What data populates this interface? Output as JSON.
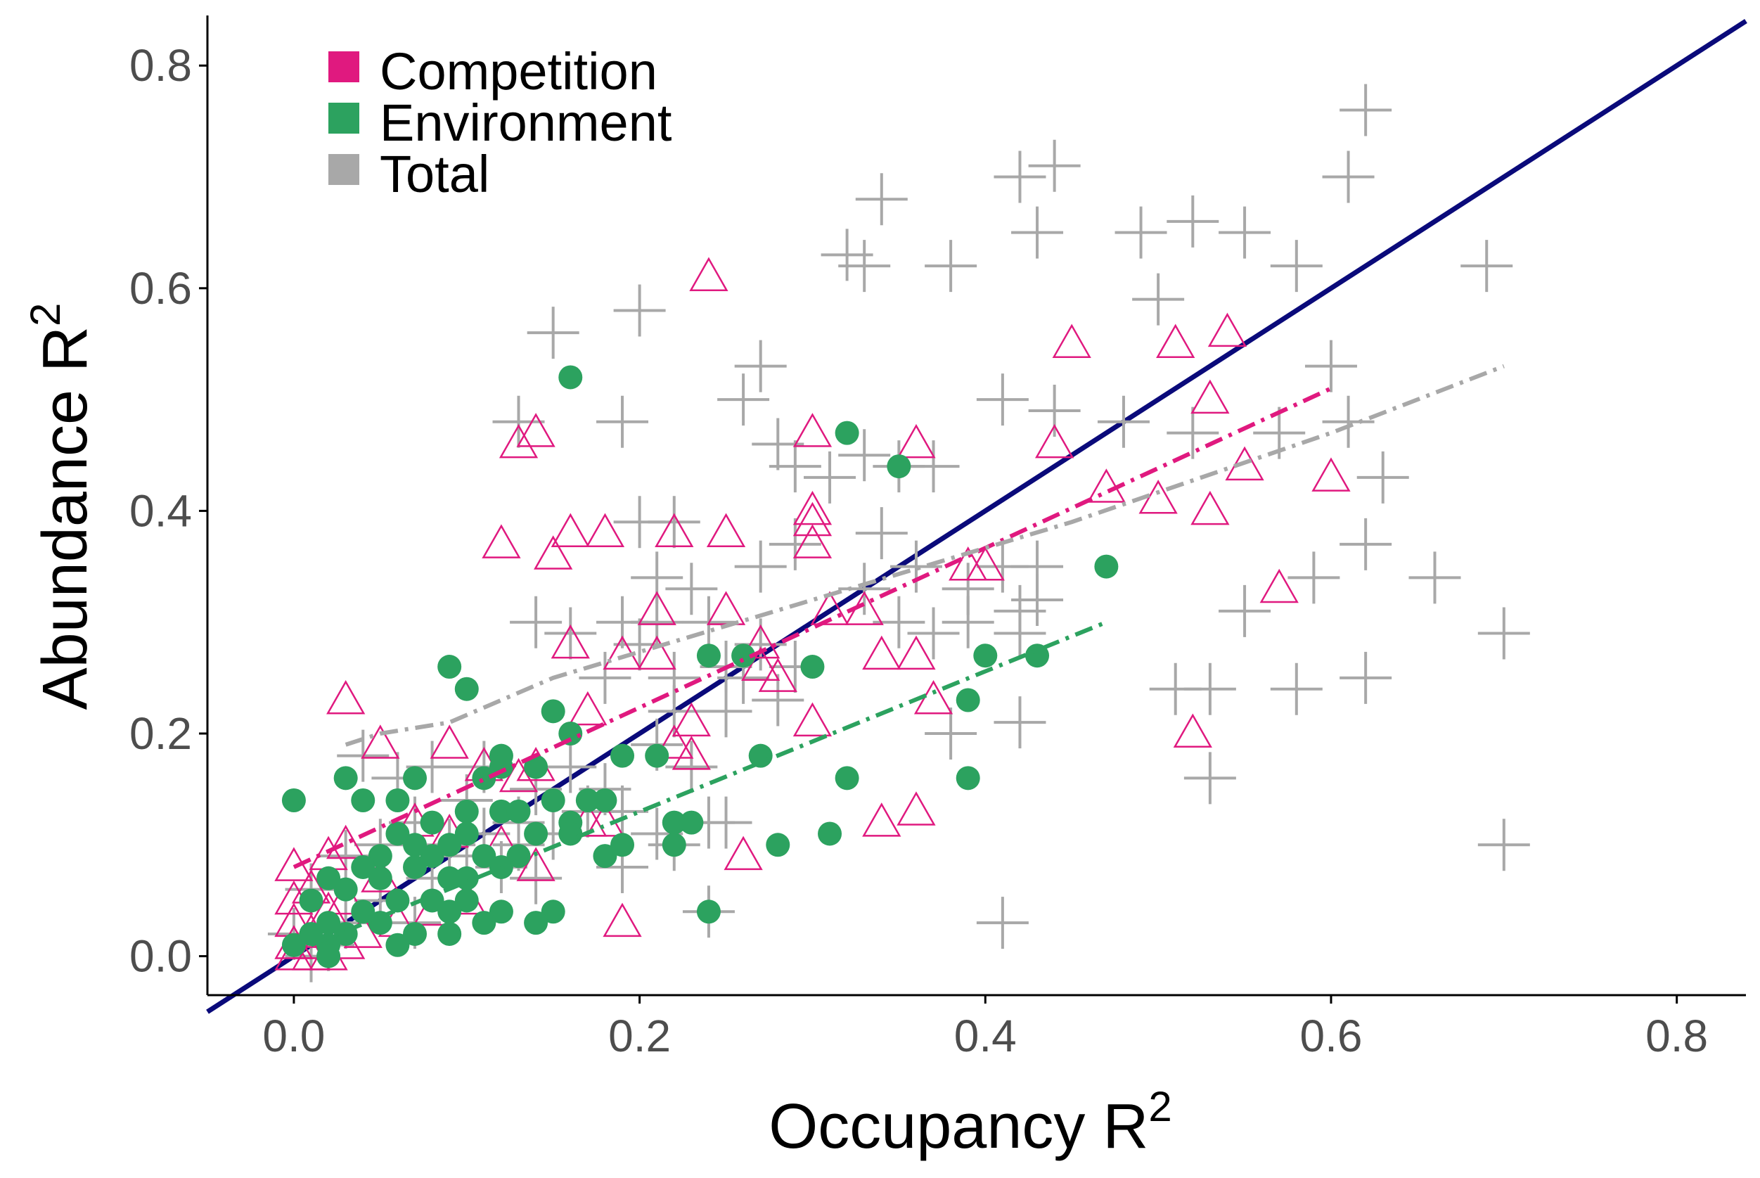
{
  "chart_data": {
    "type": "scatter",
    "title": "",
    "xlabel": "Occupancy R",
    "xlabel_sup": "2",
    "ylabel": "Abundance R",
    "ylabel_sup": "2",
    "xlim": [
      -0.05,
      0.84
    ],
    "ylim": [
      -0.035,
      0.845
    ],
    "xticks": [
      0.0,
      0.2,
      0.4,
      0.6,
      0.8
    ],
    "yticks": [
      0.0,
      0.2,
      0.4,
      0.6,
      0.8
    ],
    "xtick_labels": [
      "0.0",
      "0.2",
      "0.4",
      "0.6",
      "0.8"
    ],
    "ytick_labels": [
      "0.0",
      "0.2",
      "0.4",
      "0.6",
      "0.8"
    ],
    "grid": false,
    "legend": {
      "position": "top-left",
      "entries": [
        {
          "label": "Competition",
          "color": "#e0197f"
        },
        {
          "label": "Environment",
          "color": "#2ca25f"
        },
        {
          "label": "Total",
          "color": "#a8a8a8"
        }
      ]
    },
    "reference_line": {
      "type": "identity",
      "color": "#0a0a7a",
      "x": [
        -0.05,
        0.84
      ],
      "y": [
        -0.05,
        0.84
      ]
    },
    "series": [
      {
        "name": "Competition",
        "marker": "open-triangle",
        "color": "#e0197f",
        "points": [
          [
            0.24,
            0.61
          ],
          [
            0.45,
            0.55
          ],
          [
            0.51,
            0.55
          ],
          [
            0.54,
            0.56
          ],
          [
            0.53,
            0.5
          ],
          [
            0.14,
            0.47
          ],
          [
            0.13,
            0.46
          ],
          [
            0.3,
            0.47
          ],
          [
            0.36,
            0.46
          ],
          [
            0.44,
            0.46
          ],
          [
            0.55,
            0.44
          ],
          [
            0.6,
            0.43
          ],
          [
            0.47,
            0.42
          ],
          [
            0.5,
            0.41
          ],
          [
            0.53,
            0.4
          ],
          [
            0.3,
            0.4
          ],
          [
            0.3,
            0.39
          ],
          [
            0.16,
            0.38
          ],
          [
            0.18,
            0.38
          ],
          [
            0.22,
            0.38
          ],
          [
            0.25,
            0.38
          ],
          [
            0.12,
            0.37
          ],
          [
            0.3,
            0.37
          ],
          [
            0.15,
            0.36
          ],
          [
            0.39,
            0.35
          ],
          [
            0.4,
            0.35
          ],
          [
            0.57,
            0.33
          ],
          [
            0.31,
            0.31
          ],
          [
            0.21,
            0.31
          ],
          [
            0.25,
            0.31
          ],
          [
            0.33,
            0.31
          ],
          [
            0.16,
            0.28
          ],
          [
            0.27,
            0.28
          ],
          [
            0.34,
            0.27
          ],
          [
            0.36,
            0.27
          ],
          [
            0.19,
            0.27
          ],
          [
            0.21,
            0.27
          ],
          [
            0.27,
            0.26
          ],
          [
            0.28,
            0.25
          ],
          [
            0.37,
            0.23
          ],
          [
            0.03,
            0.23
          ],
          [
            0.17,
            0.22
          ],
          [
            0.3,
            0.21
          ],
          [
            0.23,
            0.21
          ],
          [
            0.52,
            0.2
          ],
          [
            0.05,
            0.19
          ],
          [
            0.09,
            0.19
          ],
          [
            0.22,
            0.19
          ],
          [
            0.23,
            0.18
          ],
          [
            0.11,
            0.17
          ],
          [
            0.14,
            0.17
          ],
          [
            0.13,
            0.16
          ],
          [
            0.36,
            0.13
          ],
          [
            0.34,
            0.12
          ],
          [
            0.17,
            0.12
          ],
          [
            0.18,
            0.12
          ],
          [
            0.07,
            0.12
          ],
          [
            0.09,
            0.11
          ],
          [
            0.12,
            0.1
          ],
          [
            0.03,
            0.1
          ],
          [
            0.02,
            0.09
          ],
          [
            0.26,
            0.09
          ],
          [
            0.14,
            0.08
          ],
          [
            0.0,
            0.08
          ],
          [
            0.05,
            0.07
          ],
          [
            0.01,
            0.06
          ],
          [
            0.03,
            0.05
          ],
          [
            0.0,
            0.05
          ],
          [
            0.02,
            0.04
          ],
          [
            0.19,
            0.03
          ],
          [
            0.0,
            0.03
          ],
          [
            0.01,
            0.02
          ],
          [
            0.04,
            0.02
          ],
          [
            0.01,
            0.01
          ],
          [
            0.03,
            0.01
          ],
          [
            0.0,
            0.01
          ],
          [
            0.02,
            0.0
          ],
          [
            0.0,
            0.0
          ],
          [
            0.01,
            0.0
          ],
          [
            0.06,
            0.03
          ],
          [
            0.08,
            0.04
          ],
          [
            0.1,
            0.05
          ]
        ],
        "trend": {
          "style": "dash-dot",
          "x": [
            0.0,
            0.6
          ],
          "y": [
            0.08,
            0.51
          ]
        }
      },
      {
        "name": "Environment",
        "marker": "filled-circle",
        "color": "#2ca25f",
        "points": [
          [
            0.16,
            0.52
          ],
          [
            0.32,
            0.47
          ],
          [
            0.35,
            0.44
          ],
          [
            0.47,
            0.35
          ],
          [
            0.24,
            0.27
          ],
          [
            0.26,
            0.27
          ],
          [
            0.4,
            0.27
          ],
          [
            0.43,
            0.27
          ],
          [
            0.09,
            0.26
          ],
          [
            0.3,
            0.26
          ],
          [
            0.1,
            0.24
          ],
          [
            0.39,
            0.23
          ],
          [
            0.15,
            0.22
          ],
          [
            0.16,
            0.2
          ],
          [
            0.27,
            0.18
          ],
          [
            0.12,
            0.18
          ],
          [
            0.19,
            0.18
          ],
          [
            0.21,
            0.18
          ],
          [
            0.12,
            0.17
          ],
          [
            0.14,
            0.17
          ],
          [
            0.03,
            0.16
          ],
          [
            0.32,
            0.16
          ],
          [
            0.39,
            0.16
          ],
          [
            0.07,
            0.16
          ],
          [
            0.11,
            0.16
          ],
          [
            0.0,
            0.14
          ],
          [
            0.04,
            0.14
          ],
          [
            0.06,
            0.14
          ],
          [
            0.15,
            0.14
          ],
          [
            0.18,
            0.14
          ],
          [
            0.17,
            0.14
          ],
          [
            0.1,
            0.13
          ],
          [
            0.12,
            0.13
          ],
          [
            0.13,
            0.13
          ],
          [
            0.08,
            0.12
          ],
          [
            0.22,
            0.12
          ],
          [
            0.23,
            0.12
          ],
          [
            0.16,
            0.12
          ],
          [
            0.31,
            0.11
          ],
          [
            0.06,
            0.11
          ],
          [
            0.1,
            0.11
          ],
          [
            0.16,
            0.11
          ],
          [
            0.14,
            0.11
          ],
          [
            0.19,
            0.1
          ],
          [
            0.22,
            0.1
          ],
          [
            0.28,
            0.1
          ],
          [
            0.09,
            0.1
          ],
          [
            0.11,
            0.09
          ],
          [
            0.18,
            0.09
          ],
          [
            0.05,
            0.09
          ],
          [
            0.08,
            0.09
          ],
          [
            0.13,
            0.09
          ],
          [
            0.04,
            0.08
          ],
          [
            0.07,
            0.08
          ],
          [
            0.12,
            0.08
          ],
          [
            0.02,
            0.07
          ],
          [
            0.05,
            0.07
          ],
          [
            0.09,
            0.07
          ],
          [
            0.03,
            0.06
          ],
          [
            0.06,
            0.05
          ],
          [
            0.1,
            0.05
          ],
          [
            0.01,
            0.05
          ],
          [
            0.04,
            0.04
          ],
          [
            0.09,
            0.04
          ],
          [
            0.12,
            0.04
          ],
          [
            0.15,
            0.04
          ],
          [
            0.24,
            0.04
          ],
          [
            0.02,
            0.03
          ],
          [
            0.05,
            0.03
          ],
          [
            0.11,
            0.03
          ],
          [
            0.14,
            0.03
          ],
          [
            0.01,
            0.02
          ],
          [
            0.03,
            0.02
          ],
          [
            0.07,
            0.02
          ],
          [
            0.09,
            0.02
          ],
          [
            0.06,
            0.01
          ],
          [
            0.0,
            0.01
          ],
          [
            0.02,
            0.01
          ],
          [
            0.02,
            0.0
          ],
          [
            0.08,
            0.05
          ],
          [
            0.1,
            0.07
          ],
          [
            0.07,
            0.1
          ]
        ],
        "trend": {
          "style": "dash-dot",
          "x": [
            0.01,
            0.47
          ],
          "y": [
            0.01,
            0.3
          ]
        }
      },
      {
        "name": "Total",
        "marker": "plus",
        "color": "#a8a8a8",
        "points": [
          [
            0.62,
            0.76
          ],
          [
            0.42,
            0.7
          ],
          [
            0.44,
            0.71
          ],
          [
            0.61,
            0.7
          ],
          [
            0.34,
            0.68
          ],
          [
            0.43,
            0.65
          ],
          [
            0.49,
            0.65
          ],
          [
            0.52,
            0.66
          ],
          [
            0.55,
            0.65
          ],
          [
            0.32,
            0.63
          ],
          [
            0.33,
            0.62
          ],
          [
            0.38,
            0.62
          ],
          [
            0.58,
            0.62
          ],
          [
            0.69,
            0.62
          ],
          [
            0.2,
            0.58
          ],
          [
            0.5,
            0.59
          ],
          [
            0.15,
            0.56
          ],
          [
            0.13,
            0.48
          ],
          [
            0.19,
            0.48
          ],
          [
            0.27,
            0.53
          ],
          [
            0.6,
            0.53
          ],
          [
            0.26,
            0.5
          ],
          [
            0.41,
            0.5
          ],
          [
            0.44,
            0.49
          ],
          [
            0.48,
            0.48
          ],
          [
            0.52,
            0.47
          ],
          [
            0.57,
            0.47
          ],
          [
            0.61,
            0.48
          ],
          [
            0.28,
            0.46
          ],
          [
            0.29,
            0.44
          ],
          [
            0.33,
            0.45
          ],
          [
            0.35,
            0.44
          ],
          [
            0.37,
            0.44
          ],
          [
            0.31,
            0.43
          ],
          [
            0.63,
            0.43
          ],
          [
            0.2,
            0.39
          ],
          [
            0.22,
            0.39
          ],
          [
            0.34,
            0.38
          ],
          [
            0.29,
            0.37
          ],
          [
            0.62,
            0.37
          ],
          [
            0.27,
            0.35
          ],
          [
            0.36,
            0.35
          ],
          [
            0.41,
            0.35
          ],
          [
            0.43,
            0.35
          ],
          [
            0.21,
            0.34
          ],
          [
            0.23,
            0.33
          ],
          [
            0.33,
            0.33
          ],
          [
            0.59,
            0.34
          ],
          [
            0.66,
            0.34
          ],
          [
            0.39,
            0.33
          ],
          [
            0.43,
            0.32
          ],
          [
            0.42,
            0.31
          ],
          [
            0.55,
            0.31
          ],
          [
            0.14,
            0.3
          ],
          [
            0.16,
            0.29
          ],
          [
            0.19,
            0.3
          ],
          [
            0.21,
            0.3
          ],
          [
            0.24,
            0.3
          ],
          [
            0.35,
            0.3
          ],
          [
            0.37,
            0.29
          ],
          [
            0.39,
            0.3
          ],
          [
            0.42,
            0.29
          ],
          [
            0.7,
            0.29
          ],
          [
            0.2,
            0.28
          ],
          [
            0.27,
            0.28
          ],
          [
            0.29,
            0.26
          ],
          [
            0.25,
            0.26
          ],
          [
            0.18,
            0.25
          ],
          [
            0.22,
            0.25
          ],
          [
            0.26,
            0.25
          ],
          [
            0.62,
            0.25
          ],
          [
            0.51,
            0.24
          ],
          [
            0.53,
            0.24
          ],
          [
            0.58,
            0.24
          ],
          [
            0.28,
            0.23
          ],
          [
            0.22,
            0.22
          ],
          [
            0.25,
            0.22
          ],
          [
            0.42,
            0.21
          ],
          [
            0.38,
            0.2
          ],
          [
            0.21,
            0.19
          ],
          [
            0.04,
            0.18
          ],
          [
            0.08,
            0.17
          ],
          [
            0.11,
            0.17
          ],
          [
            0.16,
            0.17
          ],
          [
            0.23,
            0.17
          ],
          [
            0.06,
            0.16
          ],
          [
            0.53,
            0.16
          ],
          [
            0.14,
            0.15
          ],
          [
            0.18,
            0.15
          ],
          [
            0.1,
            0.14
          ],
          [
            0.17,
            0.13
          ],
          [
            0.19,
            0.13
          ],
          [
            0.13,
            0.12
          ],
          [
            0.24,
            0.12
          ],
          [
            0.25,
            0.12
          ],
          [
            0.07,
            0.12
          ],
          [
            0.11,
            0.11
          ],
          [
            0.15,
            0.11
          ],
          [
            0.21,
            0.11
          ],
          [
            0.7,
            0.1
          ],
          [
            0.05,
            0.1
          ],
          [
            0.09,
            0.1
          ],
          [
            0.13,
            0.1
          ],
          [
            0.22,
            0.1
          ],
          [
            0.03,
            0.09
          ],
          [
            0.1,
            0.09
          ],
          [
            0.12,
            0.08
          ],
          [
            0.19,
            0.08
          ],
          [
            0.08,
            0.07
          ],
          [
            0.14,
            0.07
          ],
          [
            0.01,
            0.06
          ],
          [
            0.05,
            0.05
          ],
          [
            0.24,
            0.04
          ],
          [
            0.41,
            0.03
          ],
          [
            0.03,
            0.03
          ],
          [
            0.07,
            0.03
          ],
          [
            0.0,
            0.02
          ],
          [
            0.02,
            0.01
          ],
          [
            0.01,
            0.0
          ]
        ],
        "trend": {
          "style": "dash-dot",
          "x": [
            0.03,
            0.05,
            0.09,
            0.15,
            0.3,
            0.45,
            0.6,
            0.7
          ],
          "y": [
            0.19,
            0.2,
            0.21,
            0.25,
            0.32,
            0.39,
            0.47,
            0.53
          ]
        }
      }
    ]
  }
}
